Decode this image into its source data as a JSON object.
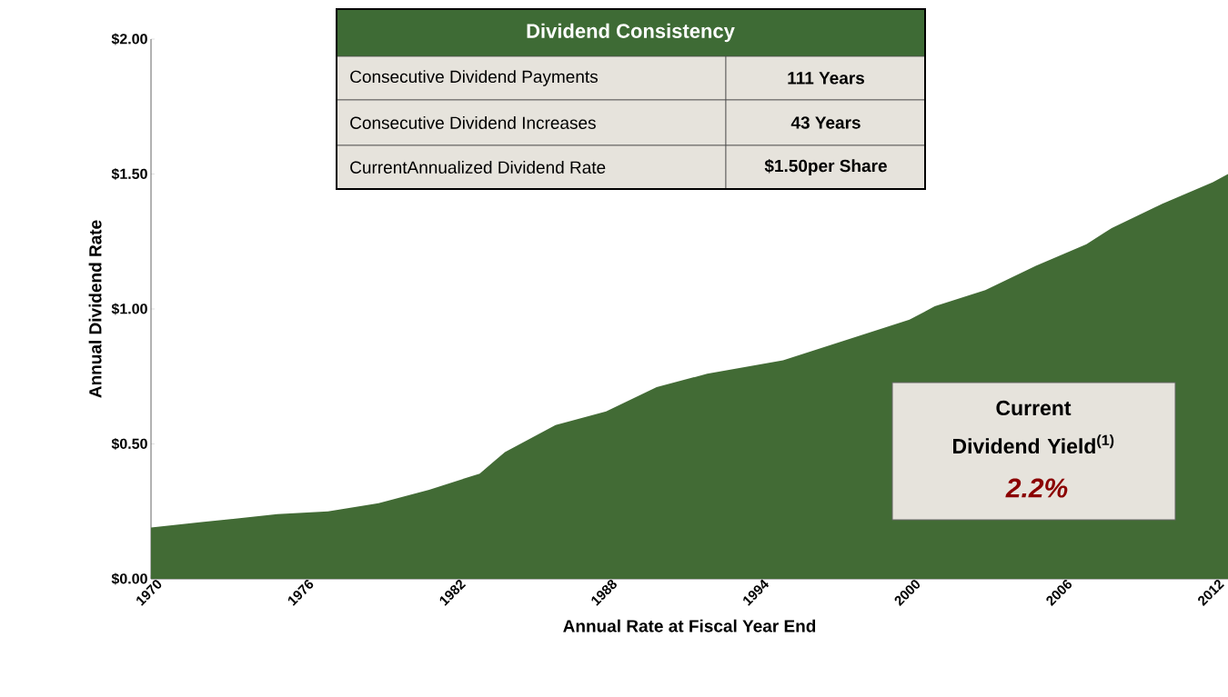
{
  "chart_data": {
    "type": "area",
    "xlabel": "Annual Rate at Fiscal Year End",
    "ylabel": "Annual Dividend Rate",
    "x": [
      1970,
      1972,
      1975,
      1977,
      1979,
      1981,
      1983,
      1984,
      1986,
      1988,
      1990,
      1992,
      1995,
      2000,
      2001,
      2003,
      2005,
      2007,
      2008,
      2010,
      2012,
      2012.6
    ],
    "values": [
      0.19,
      0.21,
      0.24,
      0.25,
      0.28,
      0.33,
      0.39,
      0.47,
      0.57,
      0.62,
      0.71,
      0.76,
      0.81,
      0.96,
      1.01,
      1.07,
      1.16,
      1.24,
      1.3,
      1.39,
      1.47,
      1.5
    ],
    "color": "#426b35",
    "xlim": [
      1970,
      2012.6
    ],
    "ylim": [
      0,
      2
    ],
    "xticks": [
      1970,
      1976,
      1982,
      1988,
      1994,
      2000,
      2006,
      2012
    ],
    "yticks": [
      {
        "value": 0,
        "label": "$0.00"
      },
      {
        "value": 0.5,
        "label": "$0.50"
      },
      {
        "value": 1,
        "label": "$1.00"
      },
      {
        "value": 1.5,
        "label": "$1.50"
      },
      {
        "value": 2,
        "label": "$2.00"
      }
    ],
    "annotations": [
      "Dividend Consistency",
      "Consecutive Dividend Payments",
      "Consecutive Dividend Increases",
      "CurrentAnnualized Dividend Rate",
      "111 Years",
      "43 Years",
      "$1.50per Share",
      "Current Dividend Yield$^{(1)}$",
      "2.2%"
    ]
  }
}
